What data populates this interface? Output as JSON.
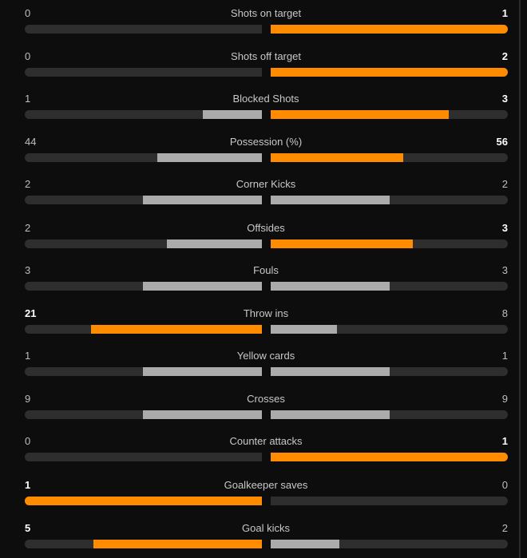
{
  "colors": {
    "background": "#0d0d0d",
    "track": "#2e2e2e",
    "bar_leading": "#ff8c00",
    "bar_neutral": "#ababab",
    "text": "#c8c8c8",
    "text_leading": "#ffffff"
  },
  "stats": [
    {
      "label": "Shots on target",
      "home": "0",
      "away": "1",
      "home_share": 0,
      "away_share": 1,
      "leader": "away"
    },
    {
      "label": "Shots off target",
      "home": "0",
      "away": "2",
      "home_share": 0,
      "away_share": 1,
      "leader": "away"
    },
    {
      "label": "Blocked Shots",
      "home": "1",
      "away": "3",
      "home_share": 0.25,
      "away_share": 0.75,
      "leader": "away"
    },
    {
      "label": "Possession (%)",
      "home": "44",
      "away": "56",
      "home_share": 0.44,
      "away_share": 0.56,
      "leader": "away"
    },
    {
      "label": "Corner Kicks",
      "home": "2",
      "away": "2",
      "home_share": 0.5,
      "away_share": 0.5,
      "leader": "none"
    },
    {
      "label": "Offsides",
      "home": "2",
      "away": "3",
      "home_share": 0.4,
      "away_share": 0.6,
      "leader": "away"
    },
    {
      "label": "Fouls",
      "home": "3",
      "away": "3",
      "home_share": 0.5,
      "away_share": 0.5,
      "leader": "none"
    },
    {
      "label": "Throw ins",
      "home": "21",
      "away": "8",
      "home_share": 0.72,
      "away_share": 0.28,
      "leader": "home"
    },
    {
      "label": "Yellow cards",
      "home": "1",
      "away": "1",
      "home_share": 0.5,
      "away_share": 0.5,
      "leader": "none"
    },
    {
      "label": "Crosses",
      "home": "9",
      "away": "9",
      "home_share": 0.5,
      "away_share": 0.5,
      "leader": "none"
    },
    {
      "label": "Counter attacks",
      "home": "0",
      "away": "1",
      "home_share": 0,
      "away_share": 1,
      "leader": "away"
    },
    {
      "label": "Goalkeeper saves",
      "home": "1",
      "away": "0",
      "home_share": 1,
      "away_share": 0,
      "leader": "home"
    },
    {
      "label": "Goal kicks",
      "home": "5",
      "away": "2",
      "home_share": 0.71,
      "away_share": 0.29,
      "leader": "home"
    }
  ]
}
